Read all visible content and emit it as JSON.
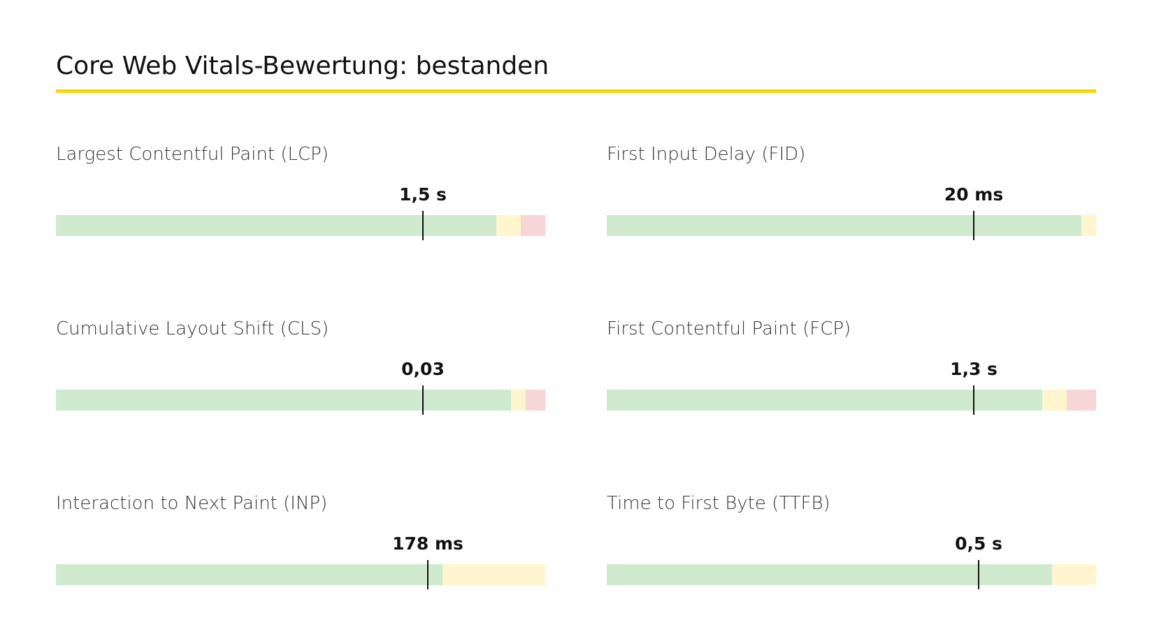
{
  "title": "Core Web Vitals-Bewertung: bestanden",
  "metrics": [
    {
      "name": "Largest Contentful Paint (LCP)",
      "value": "1,5 s",
      "distribution": [
        90,
        5,
        5
      ],
      "marker": 75
    },
    {
      "name": "First Input Delay (FID)",
      "value": "20 ms",
      "distribution": [
        97,
        3,
        0
      ],
      "marker": 75
    },
    {
      "name": "Cumulative Layout Shift (CLS)",
      "value": "0,03",
      "distribution": [
        93,
        3,
        4
      ],
      "marker": 75
    },
    {
      "name": "First Contentful Paint (FCP)",
      "value": "1,3 s",
      "distribution": [
        89,
        5,
        6
      ],
      "marker": 75
    },
    {
      "name": "Interaction to Next Paint (INP)",
      "value": "178 ms",
      "distribution": [
        79,
        21,
        0
      ],
      "marker": 76
    },
    {
      "name": "Time to First Byte (TTFB)",
      "value": "0,5 s",
      "distribution": [
        91,
        9,
        0
      ],
      "marker": 76
    }
  ],
  "colors": [
    "#d0ead0",
    "#fff6cf",
    "#f6d6d6"
  ]
}
